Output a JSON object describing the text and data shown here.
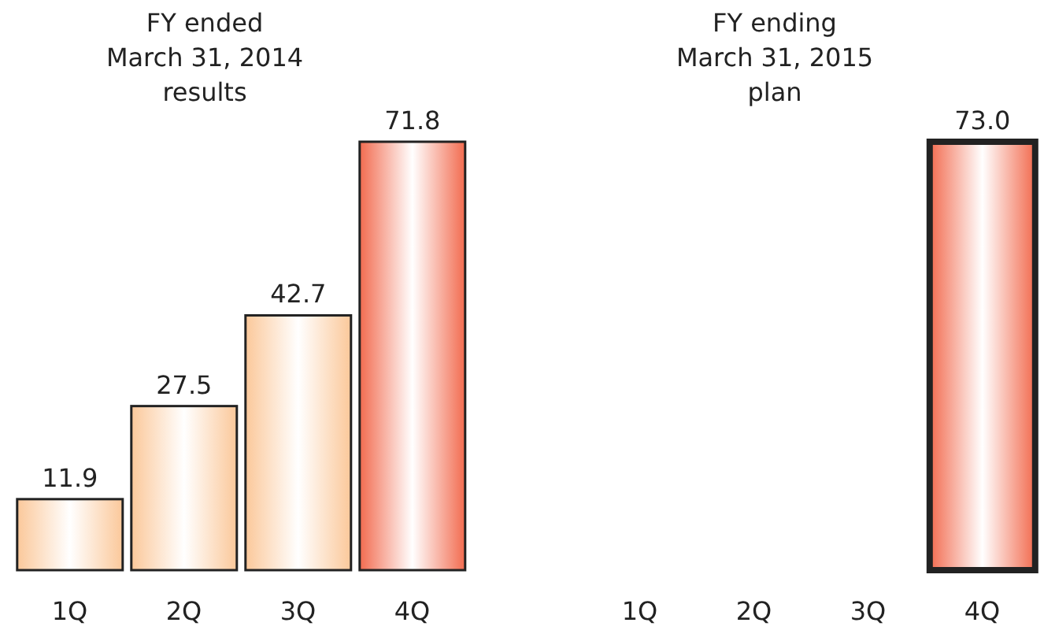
{
  "chart_data": [
    {
      "type": "bar",
      "title": "FY ended\nMarch 31, 2014\nresults",
      "categories": [
        "1Q",
        "2Q",
        "3Q",
        "4Q"
      ],
      "values": [
        11.9,
        27.5,
        42.7,
        71.8
      ],
      "colors": [
        "#fbc89a",
        "#fbc89a",
        "#fbc89a",
        "#f26b4f"
      ],
      "data_labels": true
    },
    {
      "type": "bar",
      "title": "FY ending\nMarch 31, 2015\nplan",
      "categories": [
        "1Q",
        "2Q",
        "3Q",
        "4Q"
      ],
      "values": [
        null,
        null,
        null,
        73.0
      ],
      "colors": [
        "#fbc89a",
        "#fbc89a",
        "#fbc89a",
        "#f26b4f"
      ],
      "value_labels": [
        null,
        null,
        null,
        "73.0"
      ]
    }
  ]
}
